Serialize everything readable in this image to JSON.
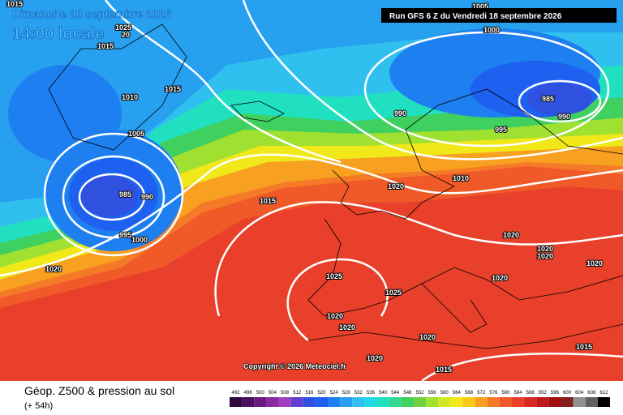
{
  "header": {
    "date": "Dimanche 20 septembre 2026",
    "time": "14:00 locale",
    "run": "Run GFS 6 Z du Vendredi 18 septembre 2026"
  },
  "copyright": "Copyright © 2026 Meteociel.fr",
  "footer": {
    "title": "Géop. Z500 & pression au sol",
    "lead": "(+ 54h)"
  },
  "colorbar": {
    "values": [
      492,
      496,
      500,
      504,
      508,
      512,
      516,
      520,
      524,
      528,
      532,
      536,
      540,
      544,
      548,
      552,
      556,
      560,
      564,
      568,
      572,
      576,
      580,
      584,
      588,
      592,
      596,
      600,
      604,
      608,
      612
    ],
    "colors": [
      "#2e0a3a",
      "#4c1060",
      "#6a1a80",
      "#8a2aa0",
      "#a040c0",
      "#6040d0",
      "#3050e0",
      "#1e60f0",
      "#1e80f0",
      "#28a0f0",
      "#30c0f0",
      "#20d8e8",
      "#20e0c0",
      "#30d890",
      "#40d060",
      "#70d040",
      "#a0e030",
      "#d0e820",
      "#f0e818",
      "#f8c818",
      "#f8a020",
      "#f47a28",
      "#f05a28",
      "#e8402a",
      "#d82a20",
      "#c01818",
      "#a01010",
      "#802020",
      "#909090",
      "#606060",
      "#000000"
    ]
  },
  "isobar_labels": [
    1015,
    1025,
    1015,
    20,
    1005,
    1000,
    1015,
    1010,
    990,
    985,
    990,
    995,
    1005,
    985,
    990,
    995,
    1000,
    1015,
    1010,
    1020,
    1020,
    1020,
    1020,
    1020,
    1020,
    1025,
    1020,
    1025,
    1020,
    1020,
    1020,
    1015,
    1020,
    1015
  ]
}
